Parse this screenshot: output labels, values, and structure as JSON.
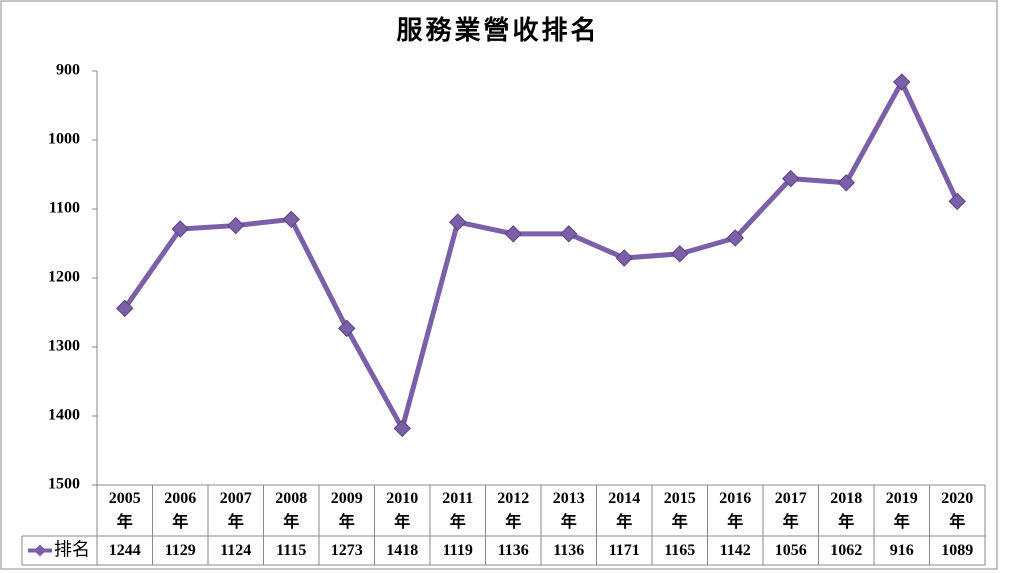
{
  "chart_data": {
    "type": "line",
    "title": "服務業營收排名",
    "categories": [
      "2005年",
      "2006年",
      "2007年",
      "2008年",
      "2009年",
      "2010年",
      "2011年",
      "2012年",
      "2013年",
      "2014年",
      "2015年",
      "2016年",
      "2017年",
      "2018年",
      "2019年",
      "2020年"
    ],
    "series": [
      {
        "name": "排名",
        "color": "#7b5fa8",
        "values": [
          1244,
          1129,
          1124,
          1115,
          1273,
          1418,
          1119,
          1136,
          1136,
          1171,
          1165,
          1142,
          1056,
          1062,
          916,
          1089
        ]
      }
    ],
    "ylim": [
      900,
      1500
    ],
    "yticks": [
      900,
      1000,
      1100,
      1200,
      1300,
      1400,
      1500
    ],
    "y_reversed": true,
    "grid": false,
    "data_table": true
  }
}
